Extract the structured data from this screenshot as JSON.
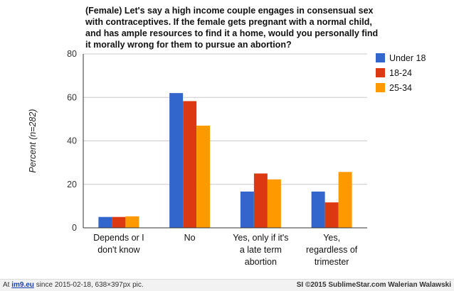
{
  "chart_data": {
    "type": "bar",
    "title_lines": [
      "(Female) Let's say a high income couple engages in consensual sex",
      "with contraceptives. If the female gets pregnant with a normal child,",
      "and has ample resources to find it a home, would you personally find",
      "it morally wrong for them to pursue an abortion?"
    ],
    "ylabel": "Percent (n=282)",
    "ylim": [
      0,
      80
    ],
    "yticks": [
      0,
      20,
      40,
      60,
      80
    ],
    "grid": true,
    "legend_position": "right",
    "categories": [
      [
        "Depends or I",
        "don't know"
      ],
      [
        "No"
      ],
      [
        "Yes, only if it's",
        "a late term",
        "abortion"
      ],
      [
        "Yes,",
        "regardless of",
        "trimester"
      ]
    ],
    "series": [
      {
        "name": "Under 18",
        "color": "#3366cc",
        "values": [
          5,
          62,
          16.7,
          16.7
        ]
      },
      {
        "name": "18-24",
        "color": "#dc3912",
        "values": [
          5,
          58.3,
          25,
          11.7
        ]
      },
      {
        "name": "25-34",
        "color": "#ff9900",
        "values": [
          5.3,
          47,
          22.3,
          25.7
        ]
      }
    ]
  },
  "footer": {
    "left_prefix": "At",
    "left_site": "im9.eu",
    "left_suffix": "since 2015-02-18, 638×397px pic.",
    "right": "SI ©2015 SublimeStar.com Walerian Walawski"
  }
}
